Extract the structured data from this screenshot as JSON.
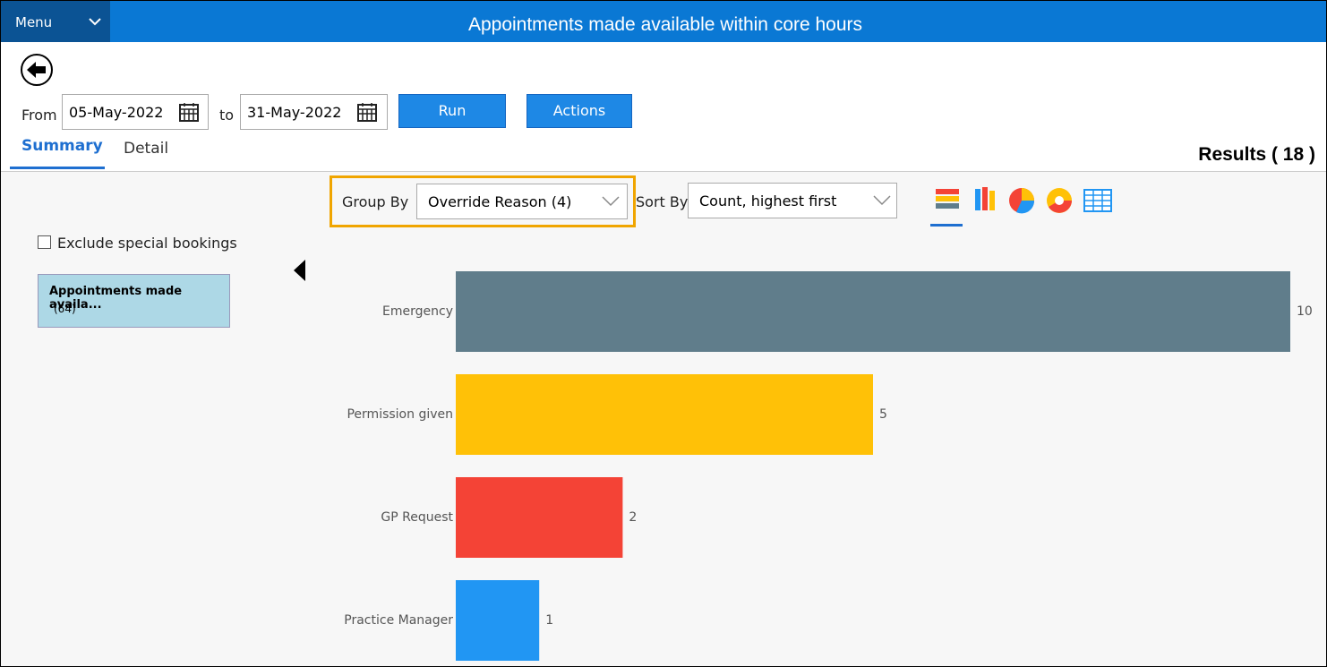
{
  "header": {
    "menu": "Menu",
    "title": "Appointments made available within core hours"
  },
  "controls": {
    "from_label": "From",
    "from_date": "05-May-2022",
    "to_label": "to",
    "to_date": "31-May-2022",
    "run": "Run",
    "actions": "Actions"
  },
  "tabs": [
    "Summary",
    "Detail"
  ],
  "results": "Results ( 18 )",
  "group_by": {
    "label": "Group By",
    "value": "Override Reason (4)"
  },
  "sort_by": {
    "label": "Sort By",
    "value": "Count, highest first"
  },
  "exclude": "Exclude special bookings",
  "tile": {
    "title": "Appointments made availa...",
    "count": "(64)"
  },
  "chart_data": {
    "type": "hbar",
    "categories": [
      "Emergency",
      "Permission given",
      "GP Request",
      "Practice Manager"
    ],
    "values": [
      10,
      5,
      2,
      1
    ],
    "colors": [
      "#607d8b",
      "#ffc107",
      "#f44336",
      "#2196f3"
    ]
  }
}
